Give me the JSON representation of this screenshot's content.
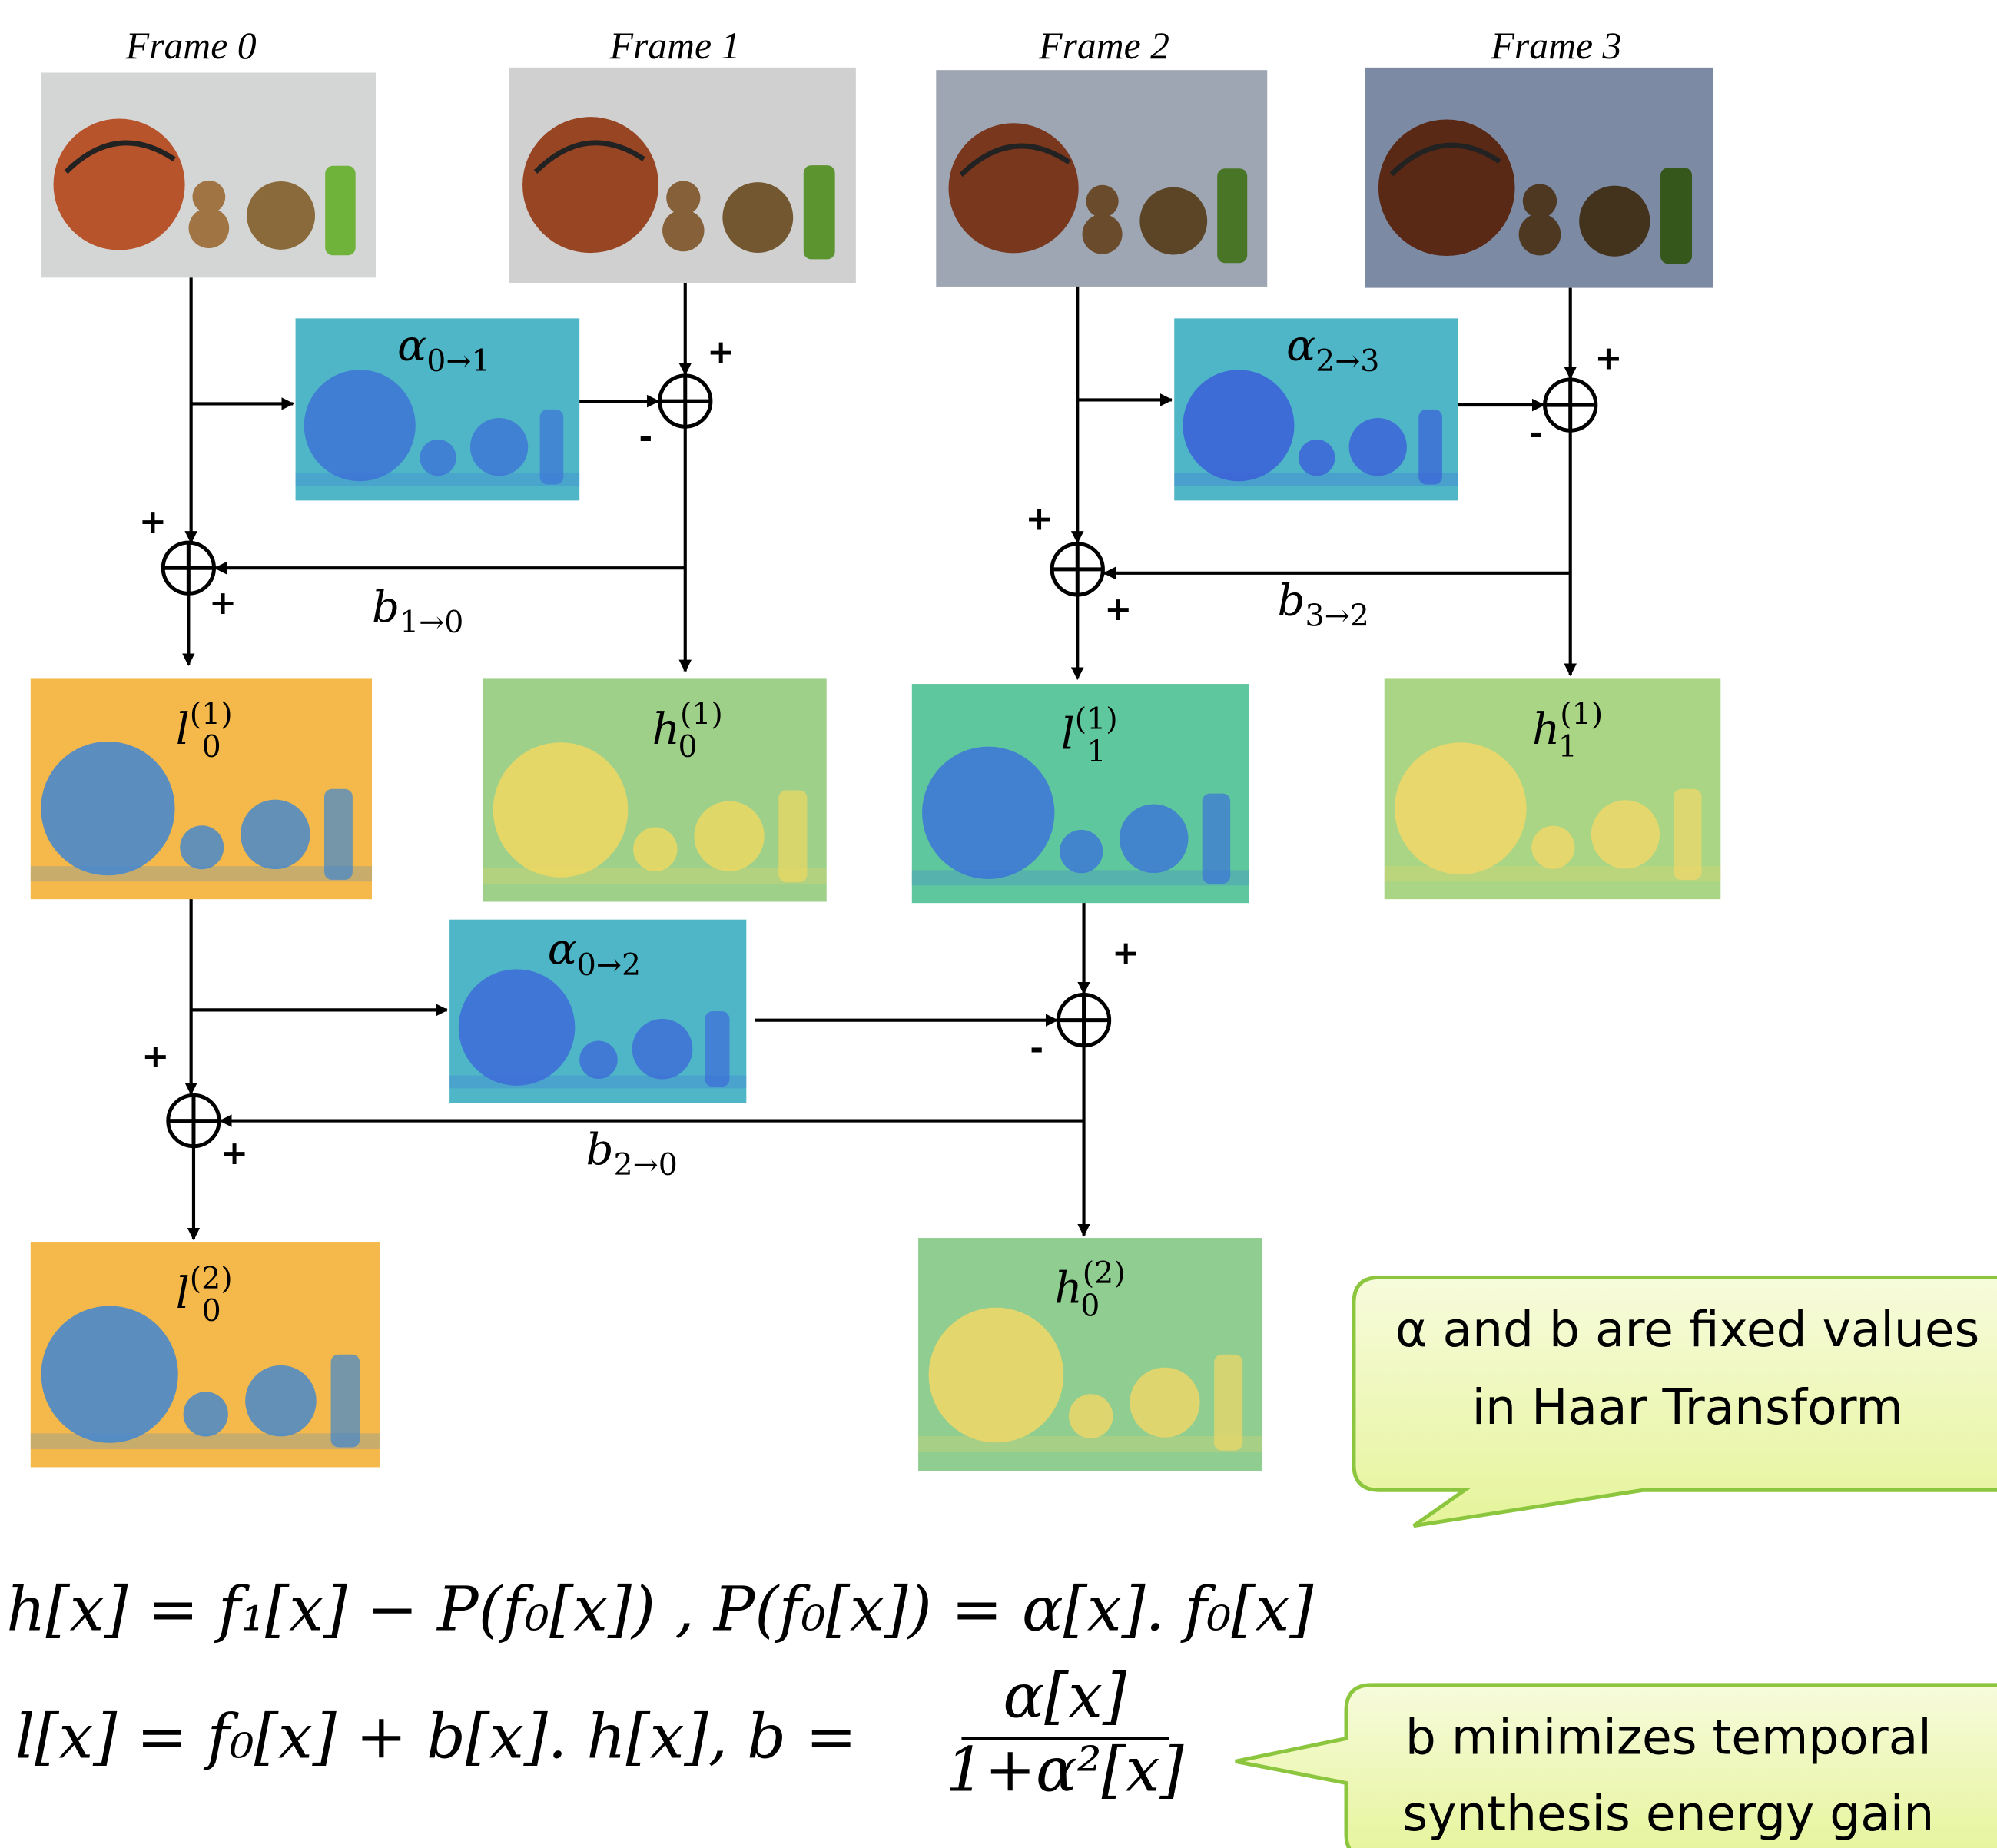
{
  "frames": [
    "Frame 0",
    "Frame 1",
    "Frame 2",
    "Frame 3"
  ],
  "predictors": [
    {
      "base": "α",
      "sub": "0→1"
    },
    {
      "base": "α",
      "sub": "2→3"
    },
    {
      "base": "α",
      "sub": "0→2"
    }
  ],
  "updates": [
    {
      "base": "b",
      "sub": "1→0"
    },
    {
      "base": "b",
      "sub": "3→2"
    },
    {
      "base": "b",
      "sub": "2→0"
    }
  ],
  "bands": [
    {
      "base": "l",
      "sub": "0",
      "sup": "(1)"
    },
    {
      "base": "h",
      "sub": "0",
      "sup": "(1)"
    },
    {
      "base": "l",
      "sub": "1",
      "sup": "(1)"
    },
    {
      "base": "h",
      "sub": "1",
      "sup": "(1)"
    },
    {
      "base": "l",
      "sub": "0",
      "sup": "(2)"
    },
    {
      "base": "h",
      "sub": "0",
      "sup": "(2)"
    }
  ],
  "signs": {
    "plus": "+",
    "minus": "-"
  },
  "callouts": [
    {
      "lines": [
        "α and b are fixed values",
        "in Haar Transform"
      ]
    },
    {
      "lines": [
        "b minimizes temporal",
        "synthesis energy gain"
      ]
    }
  ],
  "equations": {
    "prediction": "h[x] = f₁[x] − P(f₀[x]) , P(f₀[x]) = α[x]. f₀[x]",
    "update": "l[x] = f₀[x] + b[x]. h[x],  b =",
    "numerator": "α[x]",
    "denominator": "1+α²[x]"
  }
}
